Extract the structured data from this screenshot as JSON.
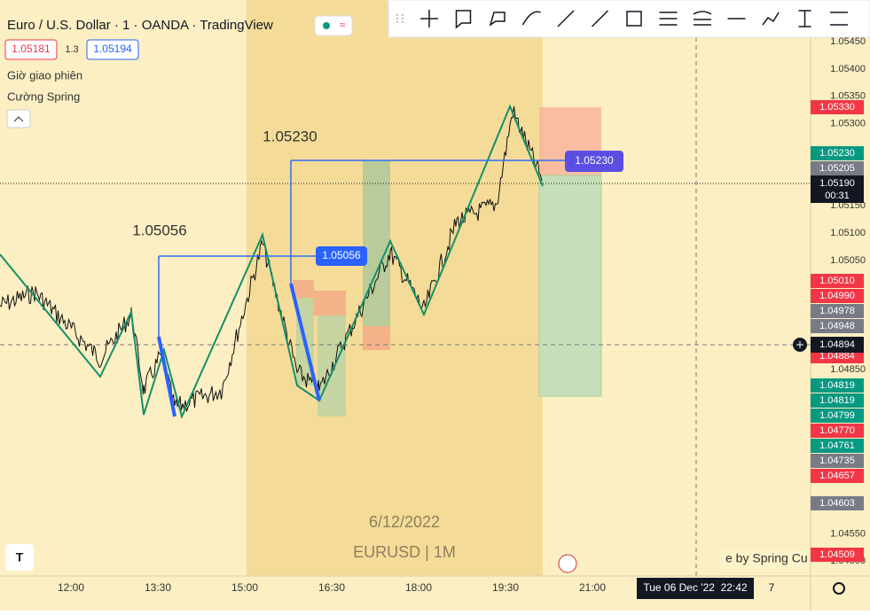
{
  "header": {
    "symbol": "Euro / U.S. Dollar · 1 · OANDA · TradingView",
    "bid": "1.05181",
    "spread": "1.3",
    "ask": "1.05194",
    "indicators": [
      "Giờ giao phiên",
      "Cường Spring"
    ]
  },
  "annotations": {
    "level_low": "1.05056",
    "level_high": "1.05230",
    "date": "6/12/2022",
    "symbol": "EURUSD | 1M",
    "credit": "e by Spring Cu"
  },
  "price_axis": {
    "ticks": [
      "1.05450",
      "1.05400",
      "1.05350",
      "1.05300",
      "1.05150",
      "1.05100",
      "1.05050",
      "1.04850",
      "1.04550",
      "1.04500"
    ],
    "tags": [
      {
        "label": "1.05330",
        "color": "#f23645"
      },
      {
        "label": "1.05230",
        "color": "#089981"
      },
      {
        "label": "1.05205",
        "color": "#787b86"
      },
      {
        "label": "1.05010",
        "color": "#f23645"
      },
      {
        "label": "1.04990",
        "color": "#f23645"
      },
      {
        "label": "1.04978",
        "color": "#787b86"
      },
      {
        "label": "1.04948",
        "color": "#787b86"
      },
      {
        "label": "1.04884",
        "color": "#f23645"
      },
      {
        "label": "1.04819",
        "color": "#089981"
      },
      {
        "label": "1.04819",
        "color": "#089981"
      },
      {
        "label": "1.04799",
        "color": "#089981"
      },
      {
        "label": "1.04770",
        "color": "#f23645"
      },
      {
        "label": "1.04761",
        "color": "#089981"
      },
      {
        "label": "1.04735",
        "color": "#787b86"
      },
      {
        "label": "1.04657",
        "color": "#f23645"
      },
      {
        "label": "1.04603",
        "color": "#787b86"
      },
      {
        "label": "1.04509",
        "color": "#f23645"
      }
    ]
  },
  "current": {
    "price": "1.05190",
    "countdown": "00:31"
  },
  "crosshair": {
    "price": "1.04894"
  },
  "time_axis": {
    "ticks": [
      "12:00",
      "13:30",
      "15:00",
      "16:30",
      "18:00",
      "19:30",
      "21:00"
    ],
    "cursor": "Tue 06 Dec '22  22:42",
    "extra": "7"
  }
}
